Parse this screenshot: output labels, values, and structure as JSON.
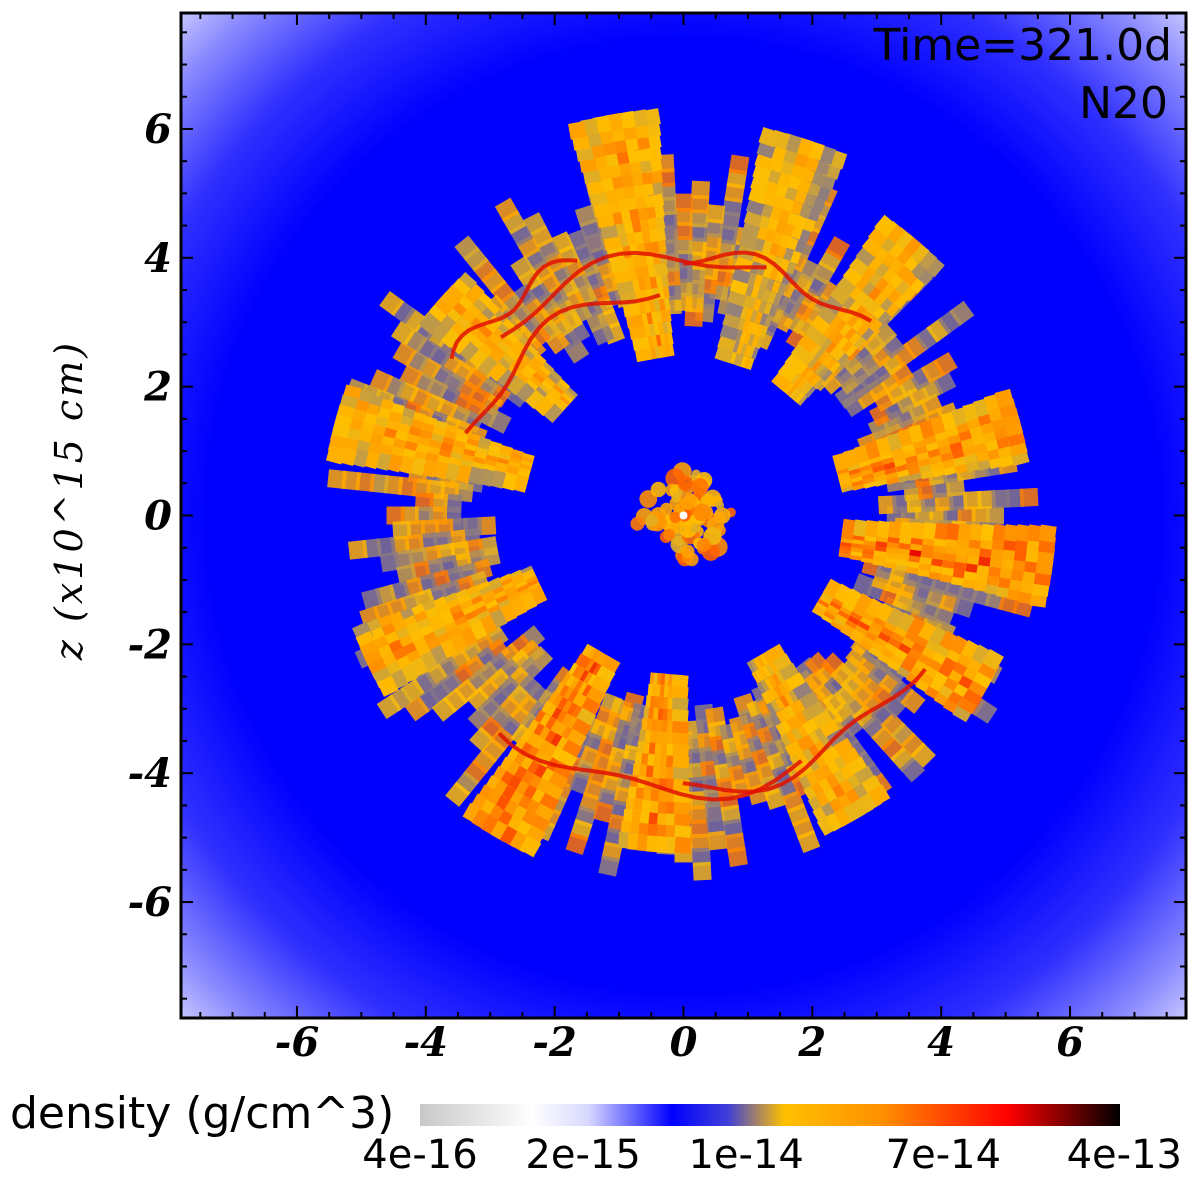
{
  "chart_data": {
    "type": "heatmap",
    "title": "",
    "xlabel": "",
    "ylabel": "z (x10^15 cm)",
    "xlim": [
      -7.8,
      7.8
    ],
    "ylim": [
      -7.8,
      7.8
    ],
    "x_ticks": [
      "-6",
      "-4",
      "-2",
      "0",
      "2",
      "4",
      "6"
    ],
    "x_tick_values": [
      -6,
      -4,
      -2,
      0,
      2,
      4,
      6
    ],
    "y_ticks": [
      "6",
      "4",
      "2",
      "0",
      "-2",
      "-4",
      "-6"
    ],
    "y_tick_values": [
      6,
      4,
      2,
      0,
      -2,
      -4,
      -6
    ],
    "annotations": [
      "Time=321.0d",
      "N20"
    ],
    "colorbar": {
      "label": "density (g/cm^3)",
      "scale": "log",
      "tick_labels": [
        "4e-16",
        "2e-15",
        "1e-14",
        "7e-14",
        "4e-13"
      ],
      "tick_values": [
        4e-16,
        2e-15,
        1e-14,
        7e-14,
        4e-13
      ],
      "colors": [
        "#c8c8c8",
        "#ffffff",
        "#0000ff",
        "#ffc000",
        "#ff9000",
        "#ff0000",
        "#000000"
      ]
    },
    "background_density_approx": 2e-15,
    "shell_inner_radius_approx": 3.0,
    "shell_outer_radius_approx": 6.3,
    "plumes": [
      {
        "angle_deg": 100,
        "r_outer": 6.2,
        "level": 0.8
      },
      {
        "angle_deg": 72,
        "r_outer": 6.1,
        "level": 0.7
      },
      {
        "angle_deg": 50,
        "r_outer": 5.6,
        "level": 0.75
      },
      {
        "angle_deg": 15,
        "r_outer": 5.3,
        "level": 0.85
      },
      {
        "angle_deg": -8,
        "r_outer": 5.8,
        "level": 0.9
      },
      {
        "angle_deg": -30,
        "r_outer": 5.3,
        "level": 0.85
      },
      {
        "angle_deg": -60,
        "r_outer": 5.3,
        "level": 0.75
      },
      {
        "angle_deg": -95,
        "r_outer": 5.2,
        "level": 0.85
      },
      {
        "angle_deg": -120,
        "r_outer": 5.7,
        "level": 0.9
      },
      {
        "angle_deg": -155,
        "r_outer": 5.4,
        "level": 0.8
      },
      {
        "angle_deg": 165,
        "r_outer": 5.5,
        "level": 0.8
      },
      {
        "angle_deg": 138,
        "r_outer": 5.0,
        "level": 0.75
      }
    ]
  }
}
